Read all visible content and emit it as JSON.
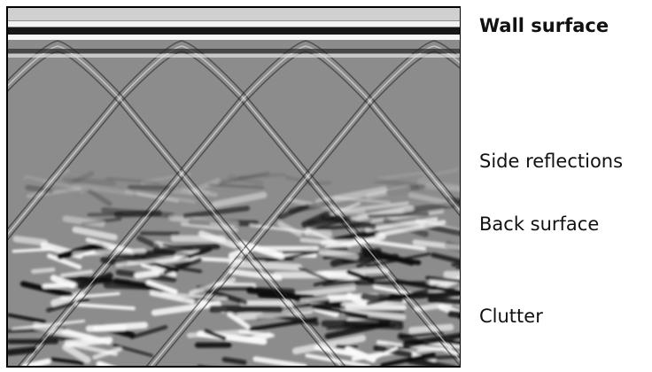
{
  "labels": {
    "wall_surface": "Wall surface",
    "side_reflections": "Side reflections",
    "back_surface": "Back surface",
    "clutter": "Clutter"
  }
}
